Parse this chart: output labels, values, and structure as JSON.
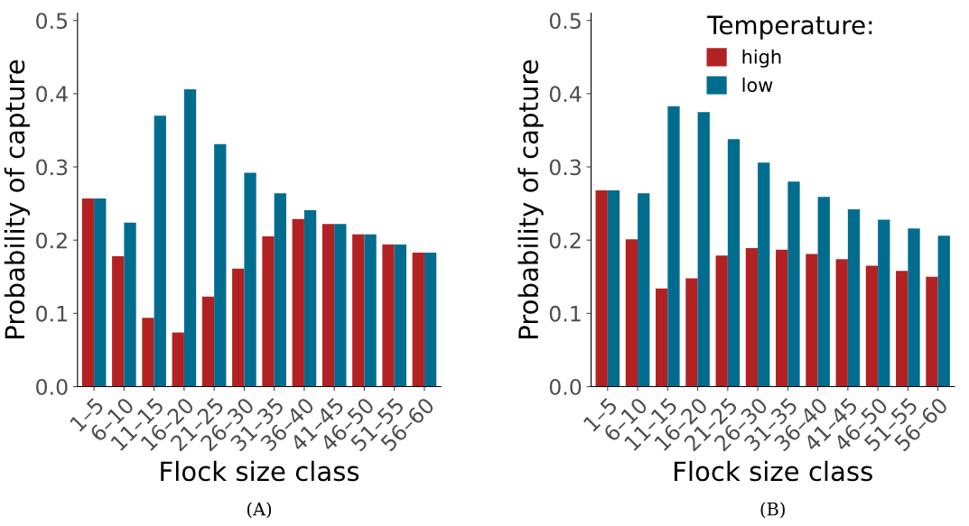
{
  "chart_data": [
    {
      "type": "bar",
      "title": "(A)",
      "xlabel": "Flock size class",
      "ylabel": "Probability of capture",
      "categories": [
        "1–5",
        "6–10",
        "11–15",
        "16–20",
        "21–25",
        "26–30",
        "31–35",
        "36–40",
        "41–45",
        "46–50",
        "51–55",
        "56–60"
      ],
      "series": [
        {
          "color": "#b22222",
          "values": [
            0.257,
            0.178,
            0.094,
            0.074,
            0.123,
            0.161,
            0.205,
            0.229,
            0.222,
            0.208,
            0.194,
            0.183
          ]
        },
        {
          "color": "#006d8f",
          "values": [
            0.257,
            0.224,
            0.37,
            0.406,
            0.331,
            0.292,
            0.264,
            0.241,
            0.222,
            0.208,
            0.194,
            0.183
          ]
        }
      ],
      "ylim": [
        0,
        0.51
      ],
      "yticks": [
        {
          "value": 0,
          "label": "0.0"
        },
        0.1,
        0.2,
        0.3,
        0.4,
        0.5
      ],
      "grid": false,
      "legend": false
    },
    {
      "type": "bar",
      "title": "(B)",
      "xlabel": "Flock size class",
      "ylabel": "Probability of capture",
      "legend_title": "Temperature:",
      "categories": [
        "1–5",
        "6–10",
        "11–15",
        "16–20",
        "21–25",
        "26–30",
        "31–35",
        "36–40",
        "41–45",
        "46–50",
        "51–55",
        "56–60"
      ],
      "series": [
        {
          "name": "high",
          "color": "#b22222",
          "values": [
            0.268,
            0.201,
            0.134,
            0.148,
            0.179,
            0.189,
            0.187,
            0.181,
            0.174,
            0.165,
            0.158,
            0.15
          ]
        },
        {
          "name": "low",
          "color": "#006d8f",
          "values": [
            0.268,
            0.264,
            0.383,
            0.375,
            0.338,
            0.306,
            0.28,
            0.259,
            0.242,
            0.228,
            0.216,
            0.206
          ]
        }
      ],
      "ylim": [
        0,
        0.51
      ],
      "yticks": [
        {
          "value": 0,
          "label": "0.0"
        },
        0.1,
        0.2,
        0.3,
        0.4,
        0.5
      ],
      "grid": false,
      "legend": "top"
    }
  ]
}
